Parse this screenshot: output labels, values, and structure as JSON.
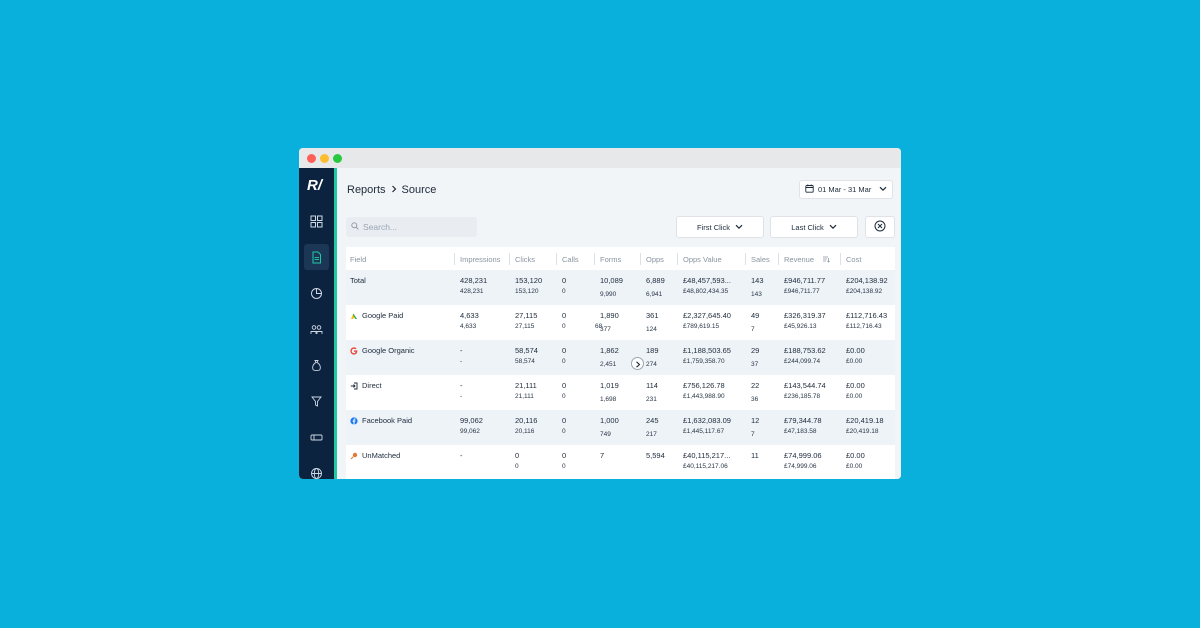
{
  "app": {
    "logo": "R/",
    "breadcrumb": {
      "parent": "Reports",
      "current": "Source"
    },
    "date_range": "01 Mar - 31 Mar",
    "search_placeholder": "Search...",
    "first_click_label": "First Click",
    "last_click_label": "Last Click"
  },
  "sidebar": {
    "items": [
      {
        "name": "dashboard",
        "icon": "grid-icon"
      },
      {
        "name": "reports",
        "icon": "document-icon",
        "active": true
      },
      {
        "name": "analytics",
        "icon": "pie-chart-icon"
      },
      {
        "name": "audiences",
        "icon": "people-icon"
      },
      {
        "name": "revenue",
        "icon": "money-bag-icon"
      },
      {
        "name": "funnel",
        "icon": "funnel-icon"
      },
      {
        "name": "campaigns",
        "icon": "ticket-icon"
      },
      {
        "name": "integrations",
        "icon": "globe-icon"
      }
    ]
  },
  "table": {
    "headers": [
      "Field",
      "Impressions",
      "Clicks",
      "Calls",
      "Forms",
      "Opps",
      "Opps Value",
      "Sales",
      "Revenue",
      "Cost"
    ],
    "rows": [
      {
        "field": "Total",
        "icon": "",
        "icon_color": "#000000",
        "primary": [
          "428,231",
          "153,120",
          "0",
          "10,089",
          "6,889",
          "£48,457,593...",
          "143",
          "£946,711.77",
          "£204,138.92"
        ],
        "secondary": [
          "428,231",
          "153,120",
          "0",
          "9,990",
          "6,941",
          "£48,802,434.35",
          "143",
          "£946,711.77",
          "£204,138.92"
        ]
      },
      {
        "field": "Google Paid",
        "icon": "google-ads-icon",
        "icon_color": "#34a853",
        "primary": [
          "4,633",
          "27,115",
          "0",
          "1,890",
          "361",
          "£2,327,645.40",
          "49",
          "£326,319.37",
          "£112,716.43"
        ],
        "secondary": [
          "4,633",
          "27,115",
          "0",
          "377",
          "124",
          "£789,619.15",
          "7",
          "£45,926.13",
          "£112,716.43"
        ],
        "overlay": "68"
      },
      {
        "field": "Google Organic",
        "icon": "google-icon",
        "icon_color": "#ea4335",
        "primary": [
          "-",
          "58,574",
          "0",
          "1,862",
          "189",
          "£1,188,503.65",
          "29",
          "£188,753.62",
          "£0.00"
        ],
        "secondary": [
          "-",
          "58,574",
          "0",
          "2,451",
          "274",
          "£1,759,358.70",
          "37",
          "£244,099.74",
          "£0.00"
        ]
      },
      {
        "field": "Direct",
        "icon": "login-icon",
        "icon_color": "#1d2a3a",
        "primary": [
          "-",
          "21,111",
          "0",
          "1,019",
          "114",
          "£756,126.78",
          "22",
          "£143,544.74",
          "£0.00"
        ],
        "secondary": [
          "-",
          "21,111",
          "0",
          "1,698",
          "231",
          "£1,443,988.90",
          "36",
          "£236,185.78",
          "£0.00"
        ]
      },
      {
        "field": "Facebook Paid",
        "icon": "facebook-icon",
        "icon_color": "#1877f2",
        "primary": [
          "99,062",
          "20,116",
          "0",
          "1,000",
          "245",
          "£1,632,083.09",
          "12",
          "£79,344.78",
          "£20,419.18"
        ],
        "secondary": [
          "99,062",
          "20,116",
          "0",
          "749",
          "217",
          "£1,445,117.67",
          "7",
          "£47,183.58",
          "£20,419.18"
        ]
      },
      {
        "field": "UnMatched",
        "icon": "unmatched-icon",
        "icon_color": "#e07a3a",
        "primary": [
          "-",
          "0",
          "0",
          "7",
          "5,594",
          "£40,115,217...",
          "11",
          "£74,999.06",
          "£0.00"
        ],
        "secondary": [
          "",
          "0",
          "0",
          "",
          "",
          "£40,115,217.06",
          "",
          "£74,999.06",
          "£0.00"
        ]
      }
    ]
  }
}
